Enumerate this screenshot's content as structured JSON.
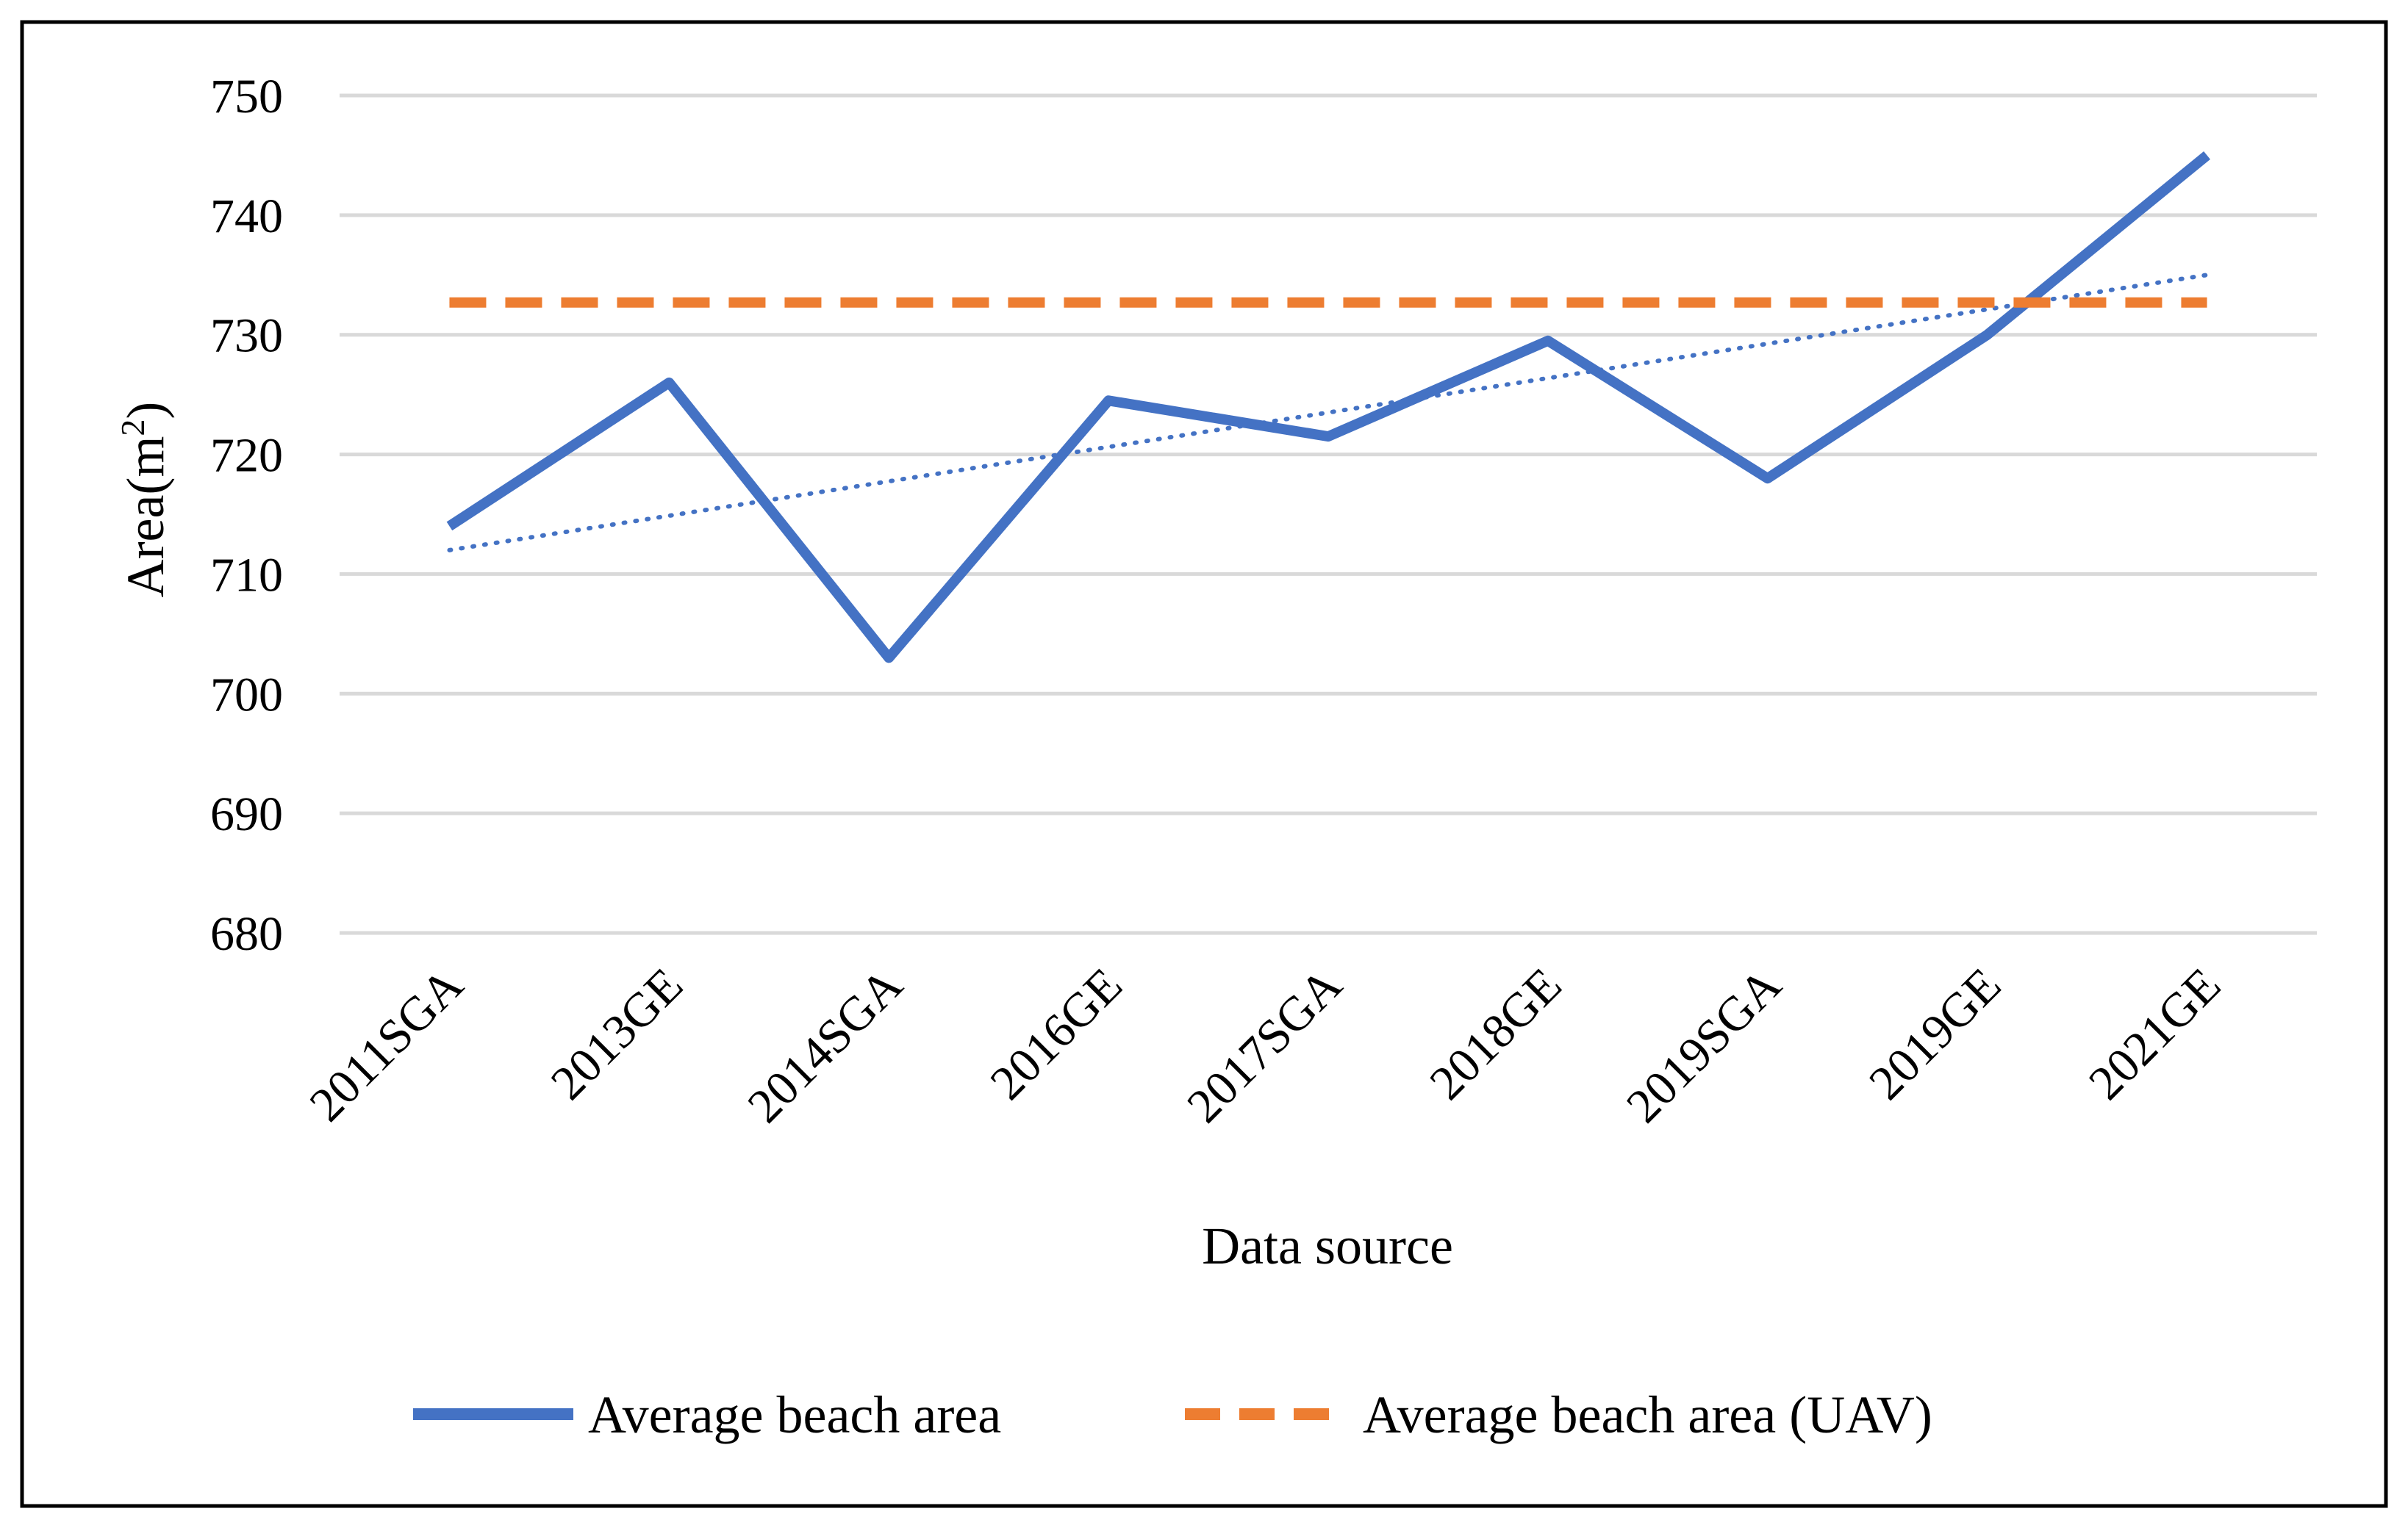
{
  "chart_data": {
    "type": "line",
    "title": "",
    "xlabel": "Data source",
    "ylabel": "Area(m",
    "ylabel_sup": "2",
    "ylabel_close": ")",
    "ylim": [
      680,
      750
    ],
    "yticks": [
      680,
      690,
      700,
      710,
      720,
      730,
      740,
      750
    ],
    "grid": true,
    "legend_position": "bottom",
    "categories": [
      "2011SGA",
      "2013GE",
      "2014SGA",
      "2016GE",
      "2017SGA",
      "2018GE",
      "2019SGA",
      "2019GE",
      "2021GE"
    ],
    "series": [
      {
        "name": "Average beach area",
        "style": "solid",
        "color": "#4472C4",
        "values": [
          714,
          726,
          703,
          724.5,
          721.5,
          729.5,
          718,
          730,
          745
        ]
      },
      {
        "name": "Average beach area (UAV)",
        "style": "dashed",
        "color": "#ED7D31",
        "values": [
          732.7,
          732.7,
          732.7,
          732.7,
          732.7,
          732.7,
          732.7,
          732.7,
          732.7
        ]
      }
    ],
    "trendline": {
      "series": "Average beach area",
      "type": "linear",
      "style": "dotted",
      "color": "#4472C4",
      "start": 712,
      "end": 735
    }
  }
}
